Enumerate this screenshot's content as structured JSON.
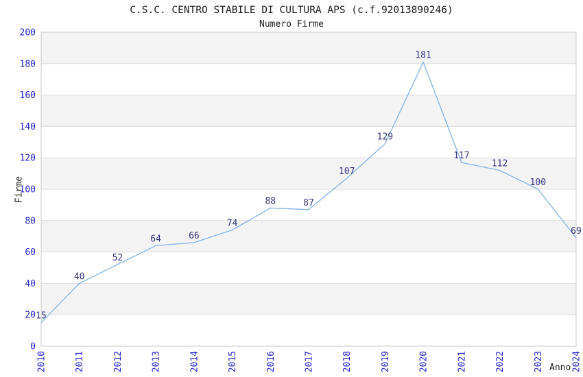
{
  "chart_data": {
    "type": "line",
    "title": "C.S.C. CENTRO STABILE DI CULTURA APS (c.f.92013890246)",
    "subtitle": "Numero Firme",
    "xlabel": "Anno",
    "ylabel": "Firme",
    "categories": [
      "2010",
      "2011",
      "2012",
      "2013",
      "2014",
      "2015",
      "2016",
      "2017",
      "2018",
      "2019",
      "2020",
      "2021",
      "2022",
      "2023",
      "2024"
    ],
    "values": [
      15,
      40,
      52,
      64,
      66,
      74,
      88,
      87,
      107,
      129,
      181,
      117,
      112,
      100,
      69
    ],
    "ylim": [
      0,
      200
    ],
    "ytick_step": 20,
    "grid": true,
    "legend_position": "none",
    "band_fill_alternating": true,
    "point_labels_visible": true,
    "colors": {
      "line": "#7fb2e5",
      "point_label": "#333380",
      "tick_label": "#2222cc",
      "axis_title": "#1a1a1a",
      "title_text": "#1a1a1a",
      "band": "#f3f3f3",
      "gridline": "#dddddd",
      "border": "#c8c8c8",
      "background": "#ffffff"
    }
  }
}
